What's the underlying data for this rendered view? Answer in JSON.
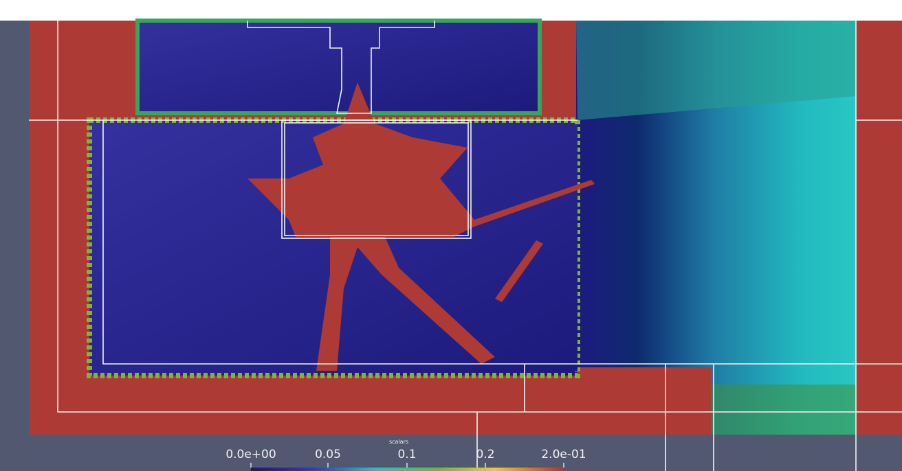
{
  "colorbar": {
    "title": "scalars",
    "ticks": [
      "0.0e+00",
      "0.05",
      "0.1",
      "0.2",
      "2.0e-01"
    ]
  }
}
